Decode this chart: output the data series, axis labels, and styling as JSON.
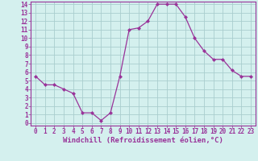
{
  "x": [
    0,
    1,
    2,
    3,
    4,
    5,
    6,
    7,
    8,
    9,
    10,
    11,
    12,
    13,
    14,
    15,
    16,
    17,
    18,
    19,
    20,
    21,
    22,
    23
  ],
  "y": [
    5.5,
    4.5,
    4.5,
    4.0,
    3.5,
    1.2,
    1.2,
    0.3,
    1.2,
    5.5,
    11.0,
    11.2,
    12.0,
    14.0,
    14.0,
    14.0,
    12.5,
    10.0,
    8.5,
    7.5,
    7.5,
    6.2,
    5.5,
    5.5
  ],
  "line_color": "#993399",
  "marker_color": "#993399",
  "bg_color": "#d4f0ee",
  "grid_color": "#aacece",
  "axis_color": "#993399",
  "xlabel": "Windchill (Refroidissement éolien,°C)",
  "xlim_min": -0.5,
  "xlim_max": 23.5,
  "ylim_min": -0.3,
  "ylim_max": 14.3,
  "xticks": [
    0,
    1,
    2,
    3,
    4,
    5,
    6,
    7,
    8,
    9,
    10,
    11,
    12,
    13,
    14,
    15,
    16,
    17,
    18,
    19,
    20,
    21,
    22,
    23
  ],
  "yticks": [
    0,
    1,
    2,
    3,
    4,
    5,
    6,
    7,
    8,
    9,
    10,
    11,
    12,
    13,
    14
  ],
  "tick_fontsize": 5.5,
  "xlabel_fontsize": 6.5
}
